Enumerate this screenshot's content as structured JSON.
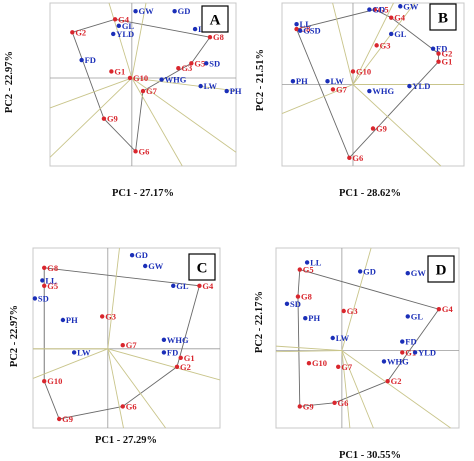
{
  "colors": {
    "genotype": "#d9262d",
    "trait": "#1b2fb8",
    "polygon": "#6a6a6a",
    "ray": "#c9c58b",
    "frame": "#c8c8c8",
    "axis": "#9a9a9a"
  },
  "chart_data": [
    {
      "type": "scatter",
      "panel_label": "A",
      "xlabel": "PC1 - 27.17%",
      "ylabel": "PC2 - 22.97%",
      "xlim": [
        0,
        10
      ],
      "ylim": [
        0,
        10
      ],
      "origin": [
        4.4,
        5.4
      ],
      "series": [
        {
          "name": "genotypes",
          "points": [
            {
              "label": "G4",
              "x": 3.5,
              "y": 9.0
            },
            {
              "label": "G2",
              "x": 1.2,
              "y": 8.2
            },
            {
              "label": "G8",
              "x": 8.6,
              "y": 7.9
            },
            {
              "label": "G1",
              "x": 3.3,
              "y": 5.8
            },
            {
              "label": "G5",
              "x": 7.6,
              "y": 6.3
            },
            {
              "label": "G3",
              "x": 6.9,
              "y": 6.0
            },
            {
              "label": "G10",
              "x": 4.3,
              "y": 5.4
            },
            {
              "label": "G7",
              "x": 5.0,
              "y": 4.6
            },
            {
              "label": "G9",
              "x": 2.9,
              "y": 2.9
            },
            {
              "label": "G6",
              "x": 4.6,
              "y": 0.9
            }
          ]
        },
        {
          "name": "traits",
          "points": [
            {
              "label": "GW",
              "x": 4.6,
              "y": 9.5
            },
            {
              "label": "GD",
              "x": 6.7,
              "y": 9.5
            },
            {
              "label": "GL",
              "x": 3.7,
              "y": 8.6
            },
            {
              "label": "LL",
              "x": 7.8,
              "y": 8.4
            },
            {
              "label": "YLD",
              "x": 3.4,
              "y": 8.1
            },
            {
              "label": "FD",
              "x": 1.7,
              "y": 6.5
            },
            {
              "label": "SD",
              "x": 8.4,
              "y": 6.3
            },
            {
              "label": "WHG",
              "x": 6.0,
              "y": 5.3
            },
            {
              "label": "LW",
              "x": 8.1,
              "y": 4.9
            },
            {
              "label": "PH",
              "x": 9.5,
              "y": 4.6
            }
          ]
        }
      ],
      "polygon_order": [
        "G4",
        "G8",
        "G5",
        "G7",
        "G6",
        "G9",
        "G2"
      ]
    },
    {
      "type": "scatter",
      "panel_label": "B",
      "xlabel": "PC1 - 28.62%",
      "ylabel": "PC2 - 21.51%",
      "xlim": [
        0,
        10
      ],
      "ylim": [
        0,
        10
      ],
      "origin": [
        3.9,
        5.0
      ],
      "series": [
        {
          "name": "genotypes",
          "points": [
            {
              "label": "G5",
              "x": 5.1,
              "y": 9.6
            },
            {
              "label": "G4",
              "x": 6.0,
              "y": 9.1
            },
            {
              "label": "G8",
              "x": 0.8,
              "y": 8.4
            },
            {
              "label": "G3",
              "x": 5.2,
              "y": 7.4
            },
            {
              "label": "G2",
              "x": 8.6,
              "y": 6.9
            },
            {
              "label": "G1",
              "x": 8.6,
              "y": 6.4
            },
            {
              "label": "G10",
              "x": 3.9,
              "y": 5.8
            },
            {
              "label": "G7",
              "x": 2.8,
              "y": 4.7
            },
            {
              "label": "G9",
              "x": 5.0,
              "y": 2.3
            },
            {
              "label": "G6",
              "x": 3.7,
              "y": 0.5
            }
          ]
        },
        {
          "name": "traits",
          "points": [
            {
              "label": "GD",
              "x": 4.8,
              "y": 9.6
            },
            {
              "label": "GW",
              "x": 6.5,
              "y": 9.8
            },
            {
              "label": "LL",
              "x": 0.8,
              "y": 8.7
            },
            {
              "label": "GSD",
              "x": 1.0,
              "y": 8.3
            },
            {
              "label": "GL",
              "x": 6.0,
              "y": 8.1
            },
            {
              "label": "FD",
              "x": 8.3,
              "y": 7.2
            },
            {
              "label": "PH",
              "x": 0.6,
              "y": 5.2
            },
            {
              "label": "LW",
              "x": 2.5,
              "y": 5.2
            },
            {
              "label": "YLD",
              "x": 7.0,
              "y": 4.9
            },
            {
              "label": "WHG",
              "x": 4.8,
              "y": 4.6
            }
          ]
        }
      ],
      "polygon_order": [
        "G5",
        "G4",
        "G2",
        "G1",
        "G6",
        "G8"
      ]
    },
    {
      "type": "scatter",
      "panel_label": "C",
      "xlabel": "PC1 - 27.29%",
      "ylabel": "PC2 - 22.97%",
      "xlim": [
        0,
        10
      ],
      "ylim": [
        0,
        10
      ],
      "origin": [
        4.0,
        4.4
      ],
      "series": [
        {
          "name": "genotypes",
          "points": [
            {
              "label": "G8",
              "x": 0.6,
              "y": 8.9
            },
            {
              "label": "G5",
              "x": 0.6,
              "y": 7.9
            },
            {
              "label": "G4",
              "x": 8.9,
              "y": 7.9
            },
            {
              "label": "G3",
              "x": 3.7,
              "y": 6.2
            },
            {
              "label": "G7",
              "x": 4.8,
              "y": 4.6
            },
            {
              "label": "G1",
              "x": 7.9,
              "y": 3.9
            },
            {
              "label": "G2",
              "x": 7.7,
              "y": 3.4
            },
            {
              "label": "G10",
              "x": 0.6,
              "y": 2.6
            },
            {
              "label": "G6",
              "x": 4.8,
              "y": 1.2
            },
            {
              "label": "G9",
              "x": 1.4,
              "y": 0.5
            }
          ]
        },
        {
          "name": "traits",
          "points": [
            {
              "label": "GD",
              "x": 5.3,
              "y": 9.6
            },
            {
              "label": "GW",
              "x": 6.0,
              "y": 9.0
            },
            {
              "label": "LL",
              "x": 0.5,
              "y": 8.2
            },
            {
              "label": "GL",
              "x": 7.5,
              "y": 7.9
            },
            {
              "label": "SD",
              "x": 0.1,
              "y": 7.2
            },
            {
              "label": "PH",
              "x": 1.6,
              "y": 6.0
            },
            {
              "label": "WHG",
              "x": 7.0,
              "y": 4.9
            },
            {
              "label": "FD",
              "x": 7.0,
              "y": 4.2
            },
            {
              "label": "LW",
              "x": 2.2,
              "y": 4.2
            }
          ]
        }
      ],
      "polygon_order": [
        "G8",
        "G4",
        "G2",
        "G6",
        "G9",
        "G10",
        "G5"
      ]
    },
    {
      "type": "scatter",
      "panel_label": "D",
      "xlabel": "PC1 - 30.55%",
      "ylabel": "PC2 - 22.17%",
      "xlim": [
        0,
        10
      ],
      "ylim": [
        0,
        10
      ],
      "origin": [
        3.6,
        4.3
      ],
      "series": [
        {
          "name": "genotypes",
          "points": [
            {
              "label": "G5",
              "x": 1.3,
              "y": 8.8
            },
            {
              "label": "G8",
              "x": 1.2,
              "y": 7.3
            },
            {
              "label": "G3",
              "x": 3.7,
              "y": 6.5
            },
            {
              "label": "G4",
              "x": 8.9,
              "y": 6.6
            },
            {
              "label": "G1",
              "x": 6.9,
              "y": 4.2
            },
            {
              "label": "G10",
              "x": 1.8,
              "y": 3.6
            },
            {
              "label": "G7",
              "x": 3.4,
              "y": 3.4
            },
            {
              "label": "G2",
              "x": 6.1,
              "y": 2.6
            },
            {
              "label": "G6",
              "x": 3.2,
              "y": 1.4
            },
            {
              "label": "G9",
              "x": 1.3,
              "y": 1.2
            }
          ]
        },
        {
          "name": "traits",
          "points": [
            {
              "label": "LL",
              "x": 1.7,
              "y": 9.2
            },
            {
              "label": "GD",
              "x": 4.6,
              "y": 8.7
            },
            {
              "label": "GW",
              "x": 7.2,
              "y": 8.6
            },
            {
              "label": "SD",
              "x": 0.6,
              "y": 6.9
            },
            {
              "label": "PH",
              "x": 1.6,
              "y": 6.1
            },
            {
              "label": "GL",
              "x": 7.2,
              "y": 6.2
            },
            {
              "label": "LW",
              "x": 3.1,
              "y": 5.0
            },
            {
              "label": "FD",
              "x": 6.9,
              "y": 4.8
            },
            {
              "label": "YLD",
              "x": 7.6,
              "y": 4.2
            },
            {
              "label": "WHG",
              "x": 5.9,
              "y": 3.7
            }
          ]
        }
      ],
      "polygon_order": [
        "G5",
        "G4",
        "G2",
        "G6",
        "G9",
        "G8"
      ]
    }
  ]
}
